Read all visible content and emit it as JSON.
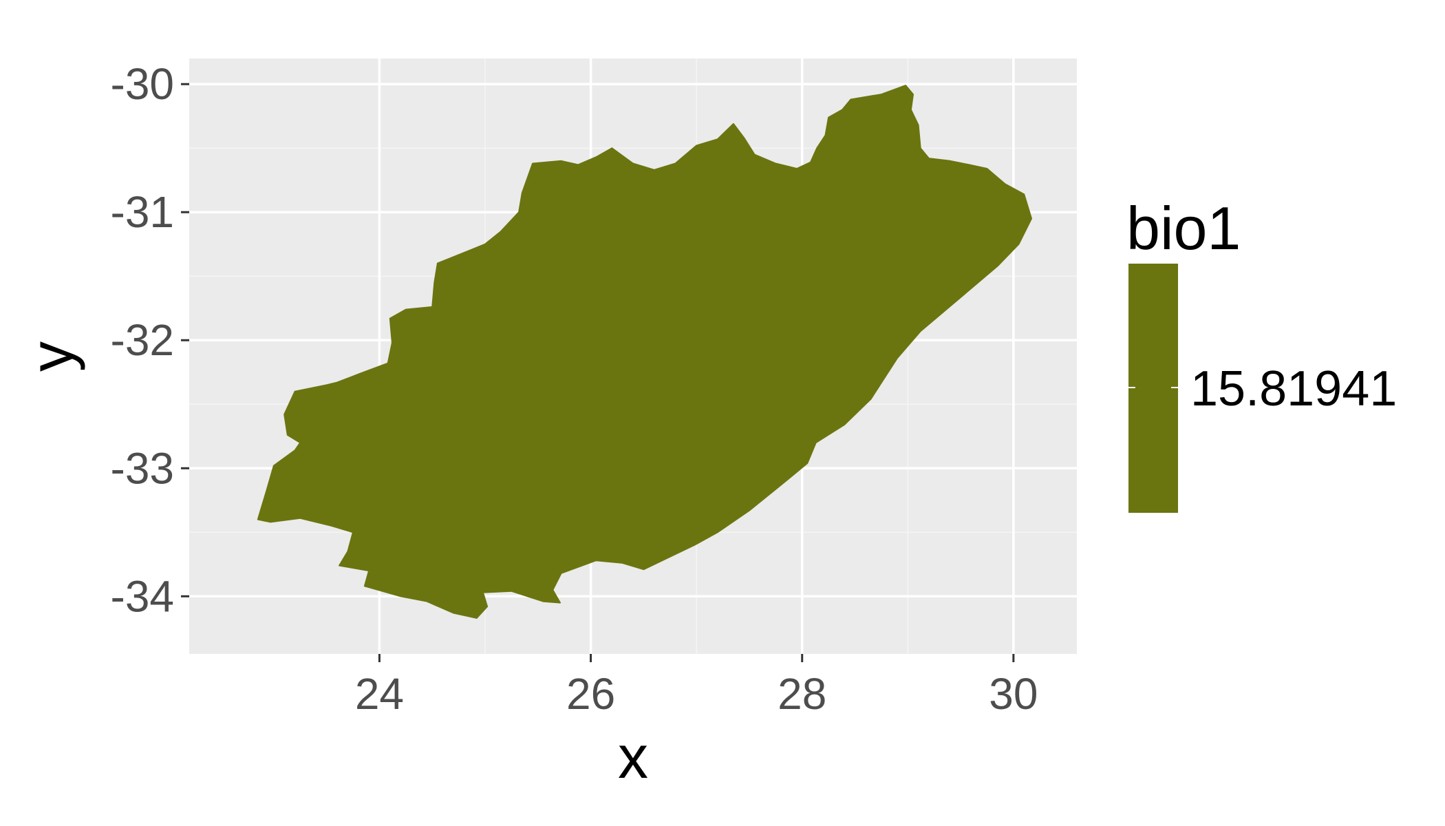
{
  "chart_data": {
    "type": "map",
    "xlabel": "x",
    "ylabel": "y",
    "xlim": [
      22.2,
      30.6
    ],
    "ylim": [
      -34.45,
      -29.8
    ],
    "x_ticks": [
      24,
      26,
      28,
      30
    ],
    "y_ticks": [
      -30,
      -31,
      -32,
      -33,
      -34
    ],
    "x_tick_labels": [
      "24",
      "26",
      "28",
      "30"
    ],
    "y_tick_labels": [
      "-30",
      "-31",
      "-32",
      "-33",
      "-34"
    ],
    "grid": true,
    "legend": {
      "title": "bio1",
      "entries": [
        {
          "label": "15.81941",
          "value": 15.81941,
          "color": "#6b7510"
        }
      ],
      "position": "right"
    },
    "region": {
      "fill_color": "#6b7510",
      "value": 15.81941,
      "outline": [
        [
          22.85,
          -33.4
        ],
        [
          22.97,
          -33.42
        ],
        [
          23.25,
          -33.39
        ],
        [
          23.35,
          -33.41
        ],
        [
          23.55,
          -33.45
        ],
        [
          23.75,
          -33.5
        ],
        [
          23.7,
          -33.65
        ],
        [
          23.62,
          -33.76
        ],
        [
          23.9,
          -33.8
        ],
        [
          23.86,
          -33.92
        ],
        [
          24.2,
          -34.0
        ],
        [
          24.45,
          -34.04
        ],
        [
          24.7,
          -34.13
        ],
        [
          24.92,
          -34.17
        ],
        [
          25.02,
          -34.08
        ],
        [
          24.98,
          -33.97
        ],
        [
          25.25,
          -33.96
        ],
        [
          25.55,
          -34.04
        ],
        [
          25.71,
          -34.05
        ],
        [
          25.64,
          -33.95
        ],
        [
          25.72,
          -33.82
        ],
        [
          26.05,
          -33.72
        ],
        [
          26.3,
          -33.74
        ],
        [
          26.5,
          -33.79
        ],
        [
          26.98,
          -33.6
        ],
        [
          27.2,
          -33.5
        ],
        [
          27.5,
          -33.33
        ],
        [
          27.8,
          -33.13
        ],
        [
          28.05,
          -32.96
        ],
        [
          28.13,
          -32.8
        ],
        [
          28.4,
          -32.66
        ],
        [
          28.65,
          -32.46
        ],
        [
          28.9,
          -32.14
        ],
        [
          29.12,
          -31.93
        ],
        [
          29.55,
          -31.63
        ],
        [
          29.85,
          -31.42
        ],
        [
          30.05,
          -31.25
        ],
        [
          30.17,
          -31.05
        ],
        [
          30.1,
          -30.86
        ],
        [
          29.92,
          -30.78
        ],
        [
          29.75,
          -30.66
        ],
        [
          29.58,
          -30.63
        ],
        [
          29.4,
          -30.6
        ],
        [
          29.2,
          -30.58
        ],
        [
          29.12,
          -30.5
        ],
        [
          29.1,
          -30.32
        ],
        [
          29.03,
          -30.2
        ],
        [
          29.05,
          -30.08
        ],
        [
          28.98,
          -30.01
        ],
        [
          28.75,
          -30.08
        ],
        [
          28.6,
          -30.1
        ],
        [
          28.46,
          -30.12
        ],
        [
          28.38,
          -30.2
        ],
        [
          28.25,
          -30.26
        ],
        [
          28.22,
          -30.4
        ],
        [
          28.14,
          -30.5
        ],
        [
          28.08,
          -30.61
        ],
        [
          27.95,
          -30.66
        ],
        [
          27.75,
          -30.62
        ],
        [
          27.55,
          -30.55
        ],
        [
          27.45,
          -30.42
        ],
        [
          27.35,
          -30.31
        ],
        [
          27.2,
          -30.43
        ],
        [
          27.0,
          -30.48
        ],
        [
          26.8,
          -30.62
        ],
        [
          26.6,
          -30.67
        ],
        [
          26.4,
          -30.62
        ],
        [
          26.2,
          -30.5
        ],
        [
          26.05,
          -30.57
        ],
        [
          25.88,
          -30.63
        ],
        [
          25.72,
          -30.6
        ],
        [
          25.45,
          -30.62
        ],
        [
          25.35,
          -30.85
        ],
        [
          25.32,
          -31.0
        ],
        [
          25.15,
          -31.15
        ],
        [
          25.0,
          -31.25
        ],
        [
          24.85,
          -31.3
        ],
        [
          24.55,
          -31.4
        ],
        [
          24.52,
          -31.55
        ],
        [
          24.5,
          -31.74
        ],
        [
          24.25,
          -31.76
        ],
        [
          24.1,
          -31.83
        ],
        [
          24.12,
          -32.02
        ],
        [
          24.08,
          -32.18
        ],
        [
          23.82,
          -32.26
        ],
        [
          23.6,
          -32.33
        ],
        [
          23.5,
          -32.35
        ],
        [
          23.2,
          -32.4
        ],
        [
          23.1,
          -32.58
        ],
        [
          23.13,
          -32.74
        ],
        [
          23.25,
          -32.8
        ],
        [
          23.2,
          -32.86
        ],
        [
          23.0,
          -32.98
        ],
        [
          22.93,
          -33.18
        ],
        [
          22.85,
          -33.4
        ]
      ]
    }
  }
}
